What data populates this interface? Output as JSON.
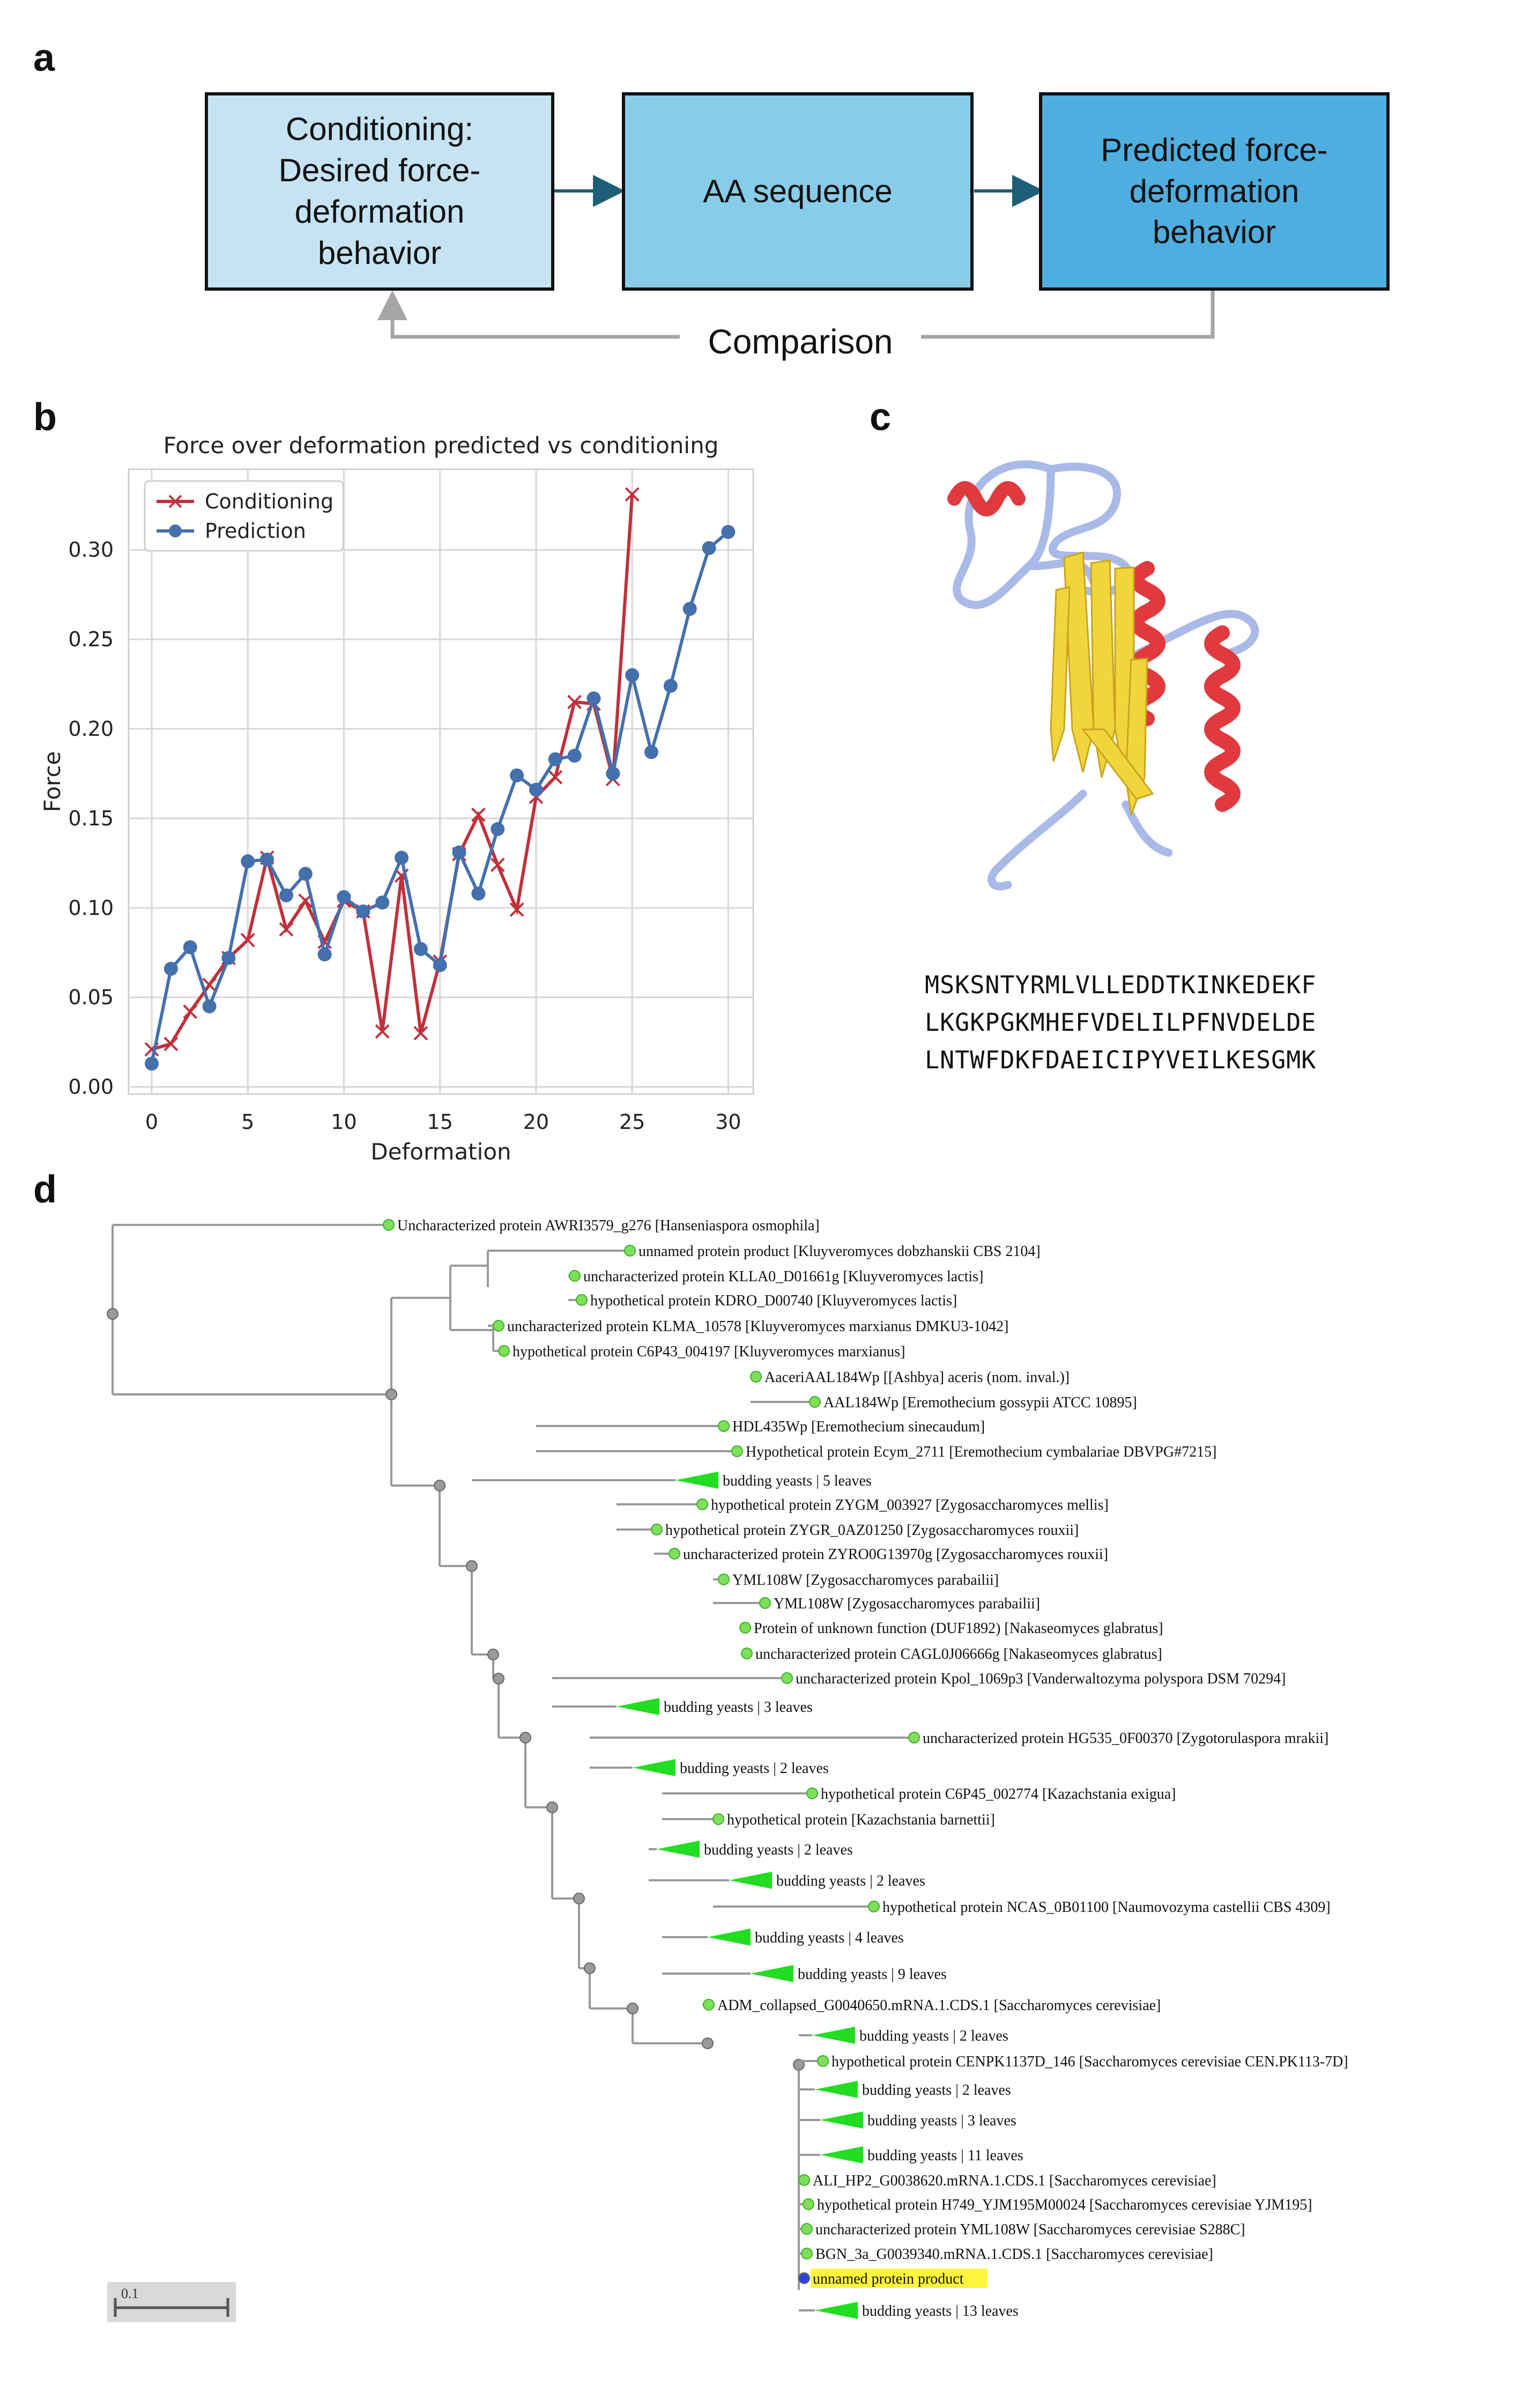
{
  "panels": {
    "a": "a",
    "b": "b",
    "c": "c",
    "d": "d"
  },
  "flow": {
    "box1": "Conditioning:\nDesired force-\ndeformation\nbehavior",
    "box2": "AA sequence",
    "box3": "Predicted force-\ndeformation\nbehavior",
    "comparison": "Comparison",
    "colors": {
      "box1": "#c5e3f3",
      "box2": "#87cdea",
      "box3": "#4eaedf",
      "arrow": "#1f5e78",
      "feedback": "#a6a6a6"
    }
  },
  "chart_data": {
    "type": "line",
    "title": "Force over deformation predicted vs conditioning",
    "xlabel": "Deformation",
    "ylabel": "Force",
    "xlim": [
      -1.2,
      31.3
    ],
    "ylim": [
      -0.004,
      0.345
    ],
    "xticks": [
      0,
      5,
      10,
      15,
      20,
      25,
      30
    ],
    "yticks": [
      0.0,
      0.05,
      0.1,
      0.15,
      0.2,
      0.25,
      0.3
    ],
    "grid": true,
    "legend_position": "top-left",
    "series": [
      {
        "name": "Conditioning",
        "color": "#c1303b",
        "marker": "x",
        "x": [
          0,
          1,
          2,
          3,
          4,
          5,
          6,
          7,
          8,
          9,
          10,
          11,
          12,
          13,
          14,
          15,
          16,
          17,
          18,
          19,
          20,
          21,
          22,
          23,
          24,
          25
        ],
        "y": [
          0.021,
          0.024,
          0.042,
          0.057,
          0.072,
          0.082,
          0.128,
          0.088,
          0.104,
          0.081,
          0.104,
          0.098,
          0.031,
          0.118,
          0.03,
          0.07,
          0.13,
          0.152,
          0.124,
          0.099,
          0.162,
          0.173,
          0.215,
          0.214,
          0.172,
          0.331
        ]
      },
      {
        "name": "Prediction",
        "color": "#4470ad",
        "marker": "o",
        "x": [
          0,
          1,
          2,
          3,
          4,
          5,
          6,
          7,
          8,
          9,
          10,
          11,
          12,
          13,
          14,
          15,
          16,
          17,
          18,
          19,
          20,
          21,
          22,
          23,
          24,
          25,
          26,
          27,
          28,
          29,
          30
        ],
        "y": [
          0.013,
          0.066,
          0.078,
          0.045,
          0.072,
          0.126,
          0.127,
          0.107,
          0.119,
          0.074,
          0.106,
          0.098,
          0.103,
          0.128,
          0.077,
          0.068,
          0.131,
          0.108,
          0.144,
          0.174,
          0.166,
          0.183,
          0.185,
          0.217,
          0.175,
          0.23,
          0.187,
          0.224,
          0.267,
          0.301,
          0.31
        ]
      }
    ]
  },
  "protein": {
    "sequence_lines": [
      "MSKSNTYRMLVLLEDDTKINKEDEKF",
      "LKGKPGKMHEFVDELILPFNVDELDE",
      "LNTWFDKFDAEICIPYVEILKESGMK"
    ],
    "colors": {
      "helix": "#e03a3e",
      "sheet": "#f2d43c",
      "coil": "#a9b9e8"
    }
  },
  "tree": {
    "scale_label": "0.1",
    "leaves": [
      {
        "label": "Uncharacterized protein AWRI3579_g276 [Hanseniaspora osmophila]"
      },
      {
        "label": "unnamed protein product [Kluyveromyces dobzhanskii CBS 2104]"
      },
      {
        "label": "uncharacterized protein KLLA0_D01661g [Kluyveromyces lactis]"
      },
      {
        "label": "hypothetical protein KDRO_D00740 [Kluyveromyces lactis]"
      },
      {
        "label": "uncharacterized protein KLMA_10578 [Kluyveromyces marxianus DMKU3-1042]"
      },
      {
        "label": "hypothetical protein C6P43_004197 [Kluyveromyces marxianus]"
      },
      {
        "label": "AaceriAAL184Wp [[Ashbya] aceris (nom. inval.)]"
      },
      {
        "label": "AAL184Wp [Eremothecium gossypii ATCC 10895]"
      },
      {
        "label": "HDL435Wp [Eremothecium sinecaudum]"
      },
      {
        "label": "Hypothetical protein Ecym_2711 [Eremothecium cymbalariae DBVPG#7215]"
      },
      {
        "label": "budding yeasts | 5 leaves"
      },
      {
        "label": "hypothetical protein ZYGM_003927 [Zygosaccharomyces mellis]"
      },
      {
        "label": "hypothetical protein ZYGR_0AZ01250 [Zygosaccharomyces rouxii]"
      },
      {
        "label": "uncharacterized protein ZYRO0G13970g [Zygosaccharomyces rouxii]"
      },
      {
        "label": "YML108W [Zygosaccharomyces parabailii]"
      },
      {
        "label": "YML108W [Zygosaccharomyces parabailii]"
      },
      {
        "label": "Protein of unknown function (DUF1892) [Nakaseomyces glabratus]"
      },
      {
        "label": "uncharacterized protein CAGL0J06666g [Nakaseomyces glabratus]"
      },
      {
        "label": "uncharacterized protein Kpol_1069p3 [Vanderwaltozyma polyspora DSM 70294]"
      },
      {
        "label": "budding yeasts | 3 leaves"
      },
      {
        "label": "uncharacterized protein HG535_0F00370 [Zygotorulaspora mrakii]"
      },
      {
        "label": "budding yeasts | 2 leaves"
      },
      {
        "label": "hypothetical protein C6P45_002774 [Kazachstania exigua]"
      },
      {
        "label": "hypothetical protein [Kazachstania barnettii]"
      },
      {
        "label": "budding yeasts | 2 leaves"
      },
      {
        "label": "budding yeasts | 2 leaves"
      },
      {
        "label": "hypothetical protein NCAS_0B01100 [Naumovozyma castellii CBS 4309]"
      },
      {
        "label": "budding yeasts | 4 leaves"
      },
      {
        "label": "budding yeasts | 9 leaves"
      },
      {
        "label": "ADM_collapsed_G0040650.mRNA.1.CDS.1 [Saccharomyces cerevisiae]"
      },
      {
        "label": "budding yeasts | 2 leaves"
      },
      {
        "label": "hypothetical protein CENPK1137D_146 [Saccharomyces cerevisiae CEN.PK113-7D]"
      },
      {
        "label": "budding yeasts | 2 leaves"
      },
      {
        "label": "budding yeasts | 3 leaves"
      },
      {
        "label": "budding yeasts | 11 leaves"
      },
      {
        "label": "ALI_HP2_G0038620.mRNA.1.CDS.1 [Saccharomyces cerevisiae]"
      },
      {
        "label": "hypothetical protein H749_YJM195M00024 [Saccharomyces cerevisiae YJM195]"
      },
      {
        "label": "uncharacterized protein YML108W [Saccharomyces cerevisiae S288C]"
      },
      {
        "label": "BGN_3a_G0039340.mRNA.1.CDS.1 [Saccharomyces cerevisiae]"
      },
      {
        "label": "unnamed protein product",
        "highlight": true
      },
      {
        "label": "budding yeasts | 13 leaves"
      }
    ]
  }
}
